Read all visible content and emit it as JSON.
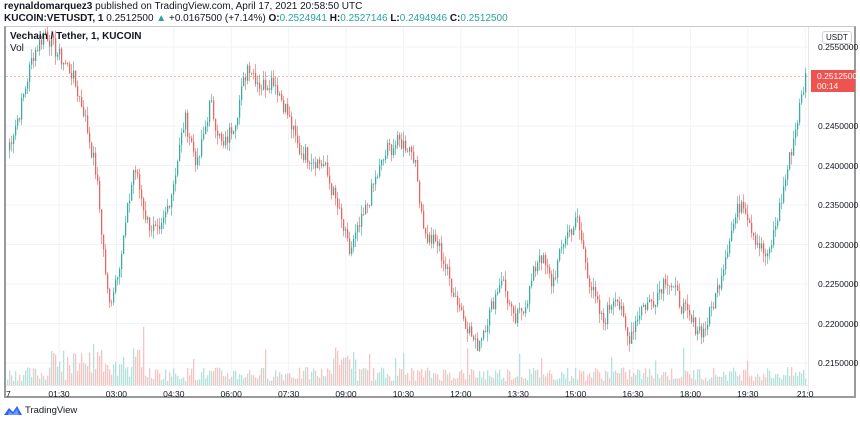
{
  "header": {
    "author": "reynaldomarquez3",
    "published_text": "published on TradingView.com, April 17, 2021 20:58:50 UTC",
    "symbol": "KUCOIN:VETUSDT, 1",
    "last_price": "0.2512500",
    "change_arrow": "▲",
    "change": "+0.0167500 (+7.14%)",
    "ohlc": {
      "o_label": "O:",
      "o": "0.2524941",
      "h_label": "H:",
      "h": "0.2527146",
      "l_label": "L:",
      "l": "0.2494946",
      "c_label": "C:",
      "c": "0.2512500"
    }
  },
  "legend": {
    "title": "Vechain / Tether, 1, KUCOIN",
    "volume": "Vol"
  },
  "price_axis": {
    "currency": "USDT",
    "current_price": "0.2512500",
    "countdown": "00:14"
  },
  "footer": {
    "brand": "TradingView"
  },
  "colors": {
    "up": "#26a69a",
    "down": "#ef5350",
    "up_volume": "#a7dcd6",
    "down_volume": "#f8b9b7",
    "grid": "#f0f3fa",
    "price_line": "#ef5350",
    "brand": "#2962ff"
  },
  "chart_data": {
    "type": "candlestick",
    "title": "Vechain / Tether, 1, KUCOIN",
    "symbol": "KUCOIN:VETUSDT",
    "interval": "1 minute",
    "xlabel": "",
    "ylabel": "USDT",
    "y_ticks": [
      "0.2550000",
      "0.2450000",
      "0.2400000",
      "0.2350000",
      "0.2300000",
      "0.2250000",
      "0.2200000",
      "0.2150000"
    ],
    "x_ticks": [
      "7",
      "01:30",
      "03:00",
      "04:30",
      "06:00",
      "07:30",
      "09:00",
      "10:30",
      "12:00",
      "13:30",
      "15:00",
      "16:30",
      "18:00",
      "19:30",
      "21:0"
    ],
    "ylim": [
      0.2128,
      0.259
    ],
    "grid": true,
    "legend": [
      "Vechain / Tether, 1, KUCOIN",
      "Vol"
    ],
    "last_price": 0.25125,
    "approx_close_path": {
      "x": [
        "00:00",
        "00:30",
        "01:00",
        "01:15",
        "01:30",
        "01:50",
        "02:15",
        "02:40",
        "03:00",
        "03:15",
        "03:30",
        "03:50",
        "04:15",
        "04:30",
        "04:50",
        "05:10",
        "05:30",
        "05:50",
        "06:10",
        "06:30",
        "06:50",
        "07:10",
        "07:20",
        "07:40",
        "08:00",
        "08:20",
        "08:40",
        "09:00",
        "09:20",
        "09:40",
        "10:00",
        "10:20",
        "10:40",
        "11:00",
        "11:20",
        "11:40",
        "12:00",
        "12:20",
        "12:40",
        "13:00",
        "13:20",
        "13:40",
        "14:00",
        "14:20",
        "14:40",
        "15:00",
        "15:20",
        "15:40",
        "16:00",
        "16:20",
        "16:40",
        "17:00",
        "17:20",
        "17:40",
        "18:00",
        "18:20",
        "18:40",
        "19:00",
        "19:20",
        "19:40",
        "20:00",
        "20:20",
        "20:40",
        "21:00"
      ],
      "close": [
        0.242,
        0.247,
        0.254,
        0.257,
        0.254,
        0.252,
        0.247,
        0.239,
        0.222,
        0.229,
        0.24,
        0.233,
        0.231,
        0.237,
        0.246,
        0.24,
        0.248,
        0.242,
        0.246,
        0.253,
        0.25,
        0.251,
        0.247,
        0.242,
        0.241,
        0.24,
        0.235,
        0.229,
        0.233,
        0.238,
        0.242,
        0.243,
        0.242,
        0.231,
        0.23,
        0.225,
        0.221,
        0.217,
        0.221,
        0.226,
        0.22,
        0.223,
        0.229,
        0.225,
        0.231,
        0.233,
        0.225,
        0.22,
        0.224,
        0.218,
        0.222,
        0.223,
        0.226,
        0.223,
        0.22,
        0.219,
        0.224,
        0.231,
        0.236,
        0.231,
        0.228,
        0.235,
        0.243,
        0.2512
      ]
    },
    "volume_series": "per-bar volume histogram along bottom, colored by candle direction, spikes near 02:00-03:00 and 10:30"
  }
}
